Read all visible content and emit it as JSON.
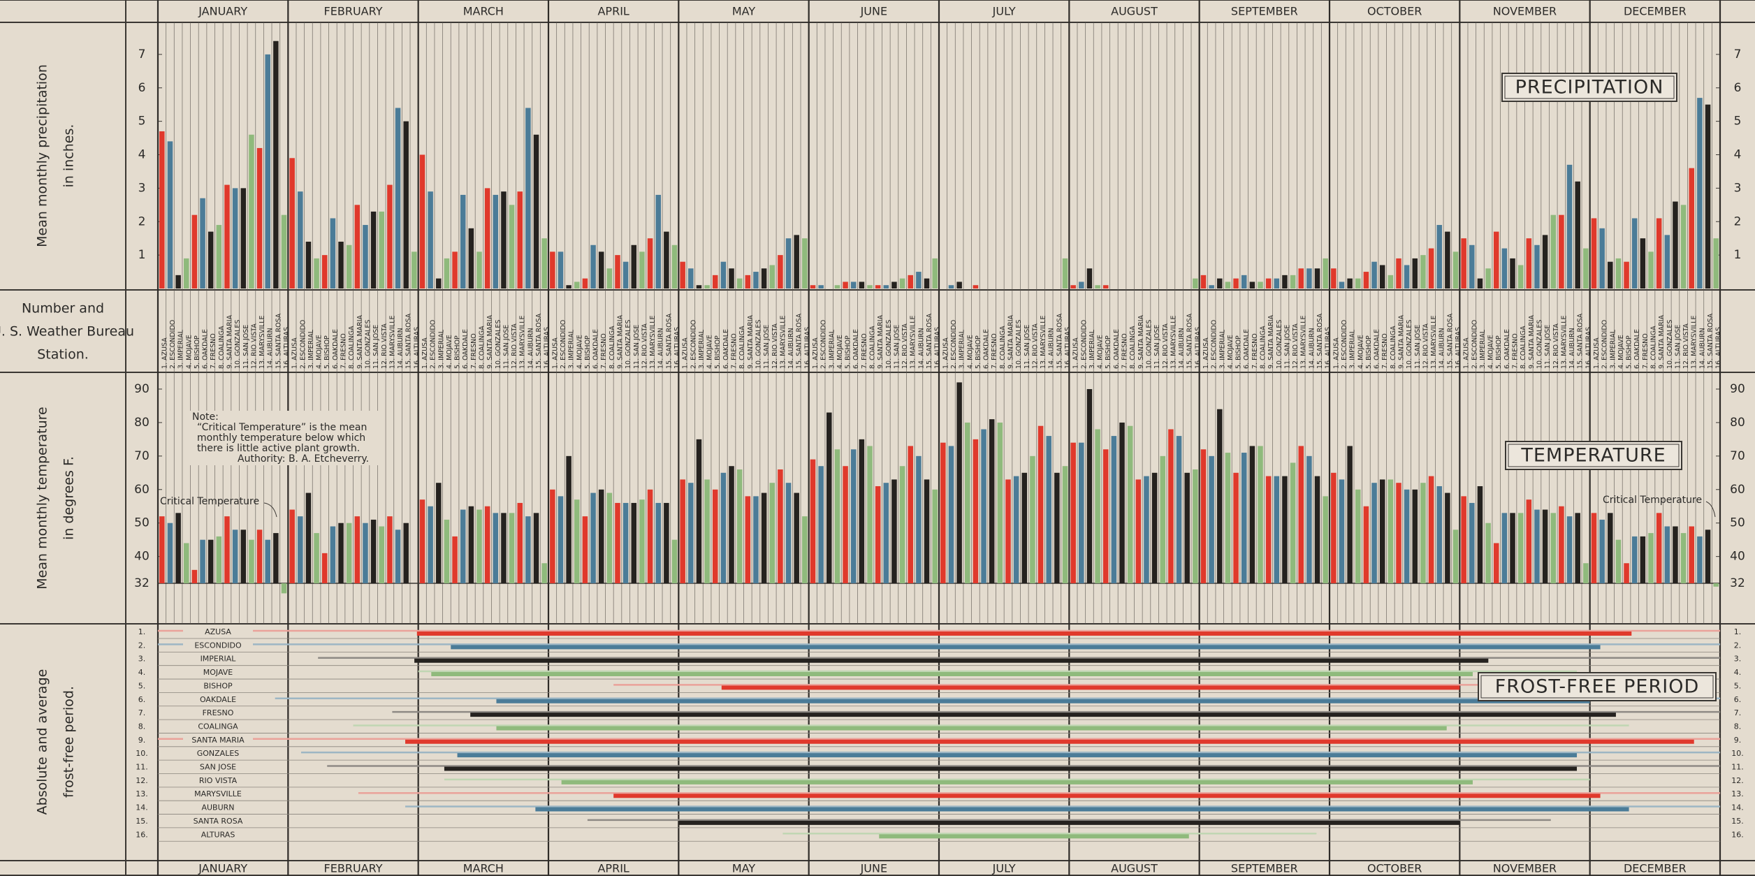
{
  "chart_data": [
    {
      "type": "bar",
      "title": "PRECIPITATION",
      "y_label": [
        "Mean monthly precipitation",
        "in inches."
      ],
      "station_label": [
        "Number and",
        "U. S. Weather Bureau",
        "Station."
      ],
      "categories": [
        "JANUARY",
        "FEBRUARY",
        "MARCH",
        "APRIL",
        "MAY",
        "JUNE",
        "JULY",
        "AUGUST",
        "SEPTEMBER",
        "OCTOBER",
        "NOVEMBER",
        "DECEMBER"
      ],
      "station_numbers": [
        "1.",
        "2.",
        "3.",
        "4.",
        "5.",
        "6.",
        "7.",
        "8.",
        "9.",
        "10.",
        "11.",
        "12.",
        "13.",
        "14.",
        "15.",
        "16."
      ],
      "ylim": [
        0,
        8
      ],
      "yticks": [
        1,
        2,
        3,
        4,
        5,
        6,
        7
      ],
      "series": [
        {
          "name": "AZUSA",
          "color": "#e0392c",
          "values": [
            4.7,
            3.9,
            4.0,
            1.1,
            0.8,
            0.1,
            0,
            0.1,
            0.4,
            0.6,
            1.5,
            2.1
          ]
        },
        {
          "name": "ESCONDIDO",
          "color": "#4b7c98",
          "values": [
            4.4,
            2.9,
            2.9,
            1.1,
            0.6,
            0.1,
            0.1,
            0.2,
            0.1,
            0.2,
            1.3,
            1.8
          ]
        },
        {
          "name": "IMPERIAL",
          "color": "#25221f",
          "values": [
            0.4,
            1.4,
            0.3,
            0.1,
            0.1,
            0,
            0.2,
            0.6,
            0.3,
            0.3,
            0.3,
            0.8
          ]
        },
        {
          "name": "MOJAVE",
          "color": "#8fba7c",
          "values": [
            0.9,
            0.9,
            0.9,
            0.2,
            0.1,
            0.1,
            0,
            0.1,
            0.2,
            0.3,
            0.6,
            0.9
          ]
        },
        {
          "name": "BISHOP",
          "color": "#e0392c",
          "values": [
            2.2,
            1.0,
            1.1,
            0.3,
            0.4,
            0.2,
            0.1,
            0.1,
            0.3,
            0.5,
            1.7,
            0.8
          ]
        },
        {
          "name": "OAKDALE",
          "color": "#4b7c98",
          "values": [
            2.7,
            2.1,
            2.8,
            1.3,
            0.8,
            0.2,
            0,
            0,
            0.4,
            0.8,
            1.2,
            2.1
          ]
        },
        {
          "name": "FRESNO",
          "color": "#25221f",
          "values": [
            1.7,
            1.4,
            1.8,
            1.1,
            0.6,
            0.2,
            0,
            0,
            0.2,
            0.7,
            0.9,
            1.5
          ]
        },
        {
          "name": "COALINGA",
          "color": "#8fba7c",
          "values": [
            1.9,
            1.3,
            1.1,
            0.6,
            0.3,
            0.1,
            0,
            0,
            0.2,
            0.4,
            0.7,
            1.1
          ]
        },
        {
          "name": "SANTA MARIA",
          "color": "#e0392c",
          "values": [
            3.1,
            2.5,
            3.0,
            1.0,
            0.4,
            0.1,
            0,
            0,
            0.3,
            0.9,
            1.5,
            2.1
          ]
        },
        {
          "name": "GONZALES",
          "color": "#4b7c98",
          "values": [
            3.0,
            1.9,
            2.8,
            0.8,
            0.5,
            0.1,
            0,
            0,
            0.3,
            0.7,
            1.3,
            1.6
          ]
        },
        {
          "name": "SAN JOSE",
          "color": "#25221f",
          "values": [
            3.0,
            2.3,
            2.9,
            1.3,
            0.6,
            0.2,
            0,
            0,
            0.4,
            0.9,
            1.6,
            2.6
          ]
        },
        {
          "name": "RIO VISTA",
          "color": "#8fba7c",
          "values": [
            4.6,
            2.3,
            2.5,
            1.1,
            0.7,
            0.3,
            0,
            0,
            0.4,
            1.0,
            2.2,
            2.5
          ]
        },
        {
          "name": "MARYSVILLE",
          "color": "#e0392c",
          "values": [
            4.2,
            3.1,
            2.9,
            1.5,
            1.0,
            0.4,
            0,
            0,
            0.6,
            1.2,
            2.2,
            3.6
          ]
        },
        {
          "name": "AUBURN",
          "color": "#4b7c98",
          "values": [
            7.0,
            5.4,
            5.4,
            2.8,
            1.5,
            0.5,
            0,
            0,
            0.6,
            1.9,
            3.7,
            5.7
          ]
        },
        {
          "name": "SANTA ROSA",
          "color": "#25221f",
          "values": [
            7.4,
            5.0,
            4.6,
            1.7,
            1.6,
            0.3,
            0,
            0,
            0.6,
            1.7,
            3.2,
            5.5
          ]
        },
        {
          "name": "ALTURAS",
          "color": "#8fba7c",
          "values": [
            2.2,
            1.1,
            1.5,
            1.3,
            1.5,
            0.9,
            0.9,
            0.3,
            0.9,
            1.1,
            1.2,
            1.5
          ]
        }
      ]
    },
    {
      "type": "bar",
      "title": "TEMPERATURE",
      "y_label": [
        "Mean monthly temperature",
        "in degrees F."
      ],
      "annotations": [
        "Critical Temperature",
        "Critical Temperature"
      ],
      "note": [
        "Note:",
        "“Critical Temperature” is the mean",
        "monthly temperature below which",
        "there is little active plant growth.",
        "Authority:   B. A. Etcheverry."
      ],
      "ylim": [
        32,
        95
      ],
      "yticks": [
        32,
        40,
        50,
        60,
        70,
        80,
        90
      ],
      "series": [
        {
          "color": "#e0392c",
          "values": [
            52,
            54,
            57,
            60,
            63,
            69,
            74,
            74,
            72,
            65,
            58,
            53
          ]
        },
        {
          "color": "#4b7c98",
          "values": [
            50,
            52,
            55,
            58,
            62,
            67,
            73,
            74,
            70,
            63,
            56,
            51
          ]
        },
        {
          "color": "#25221f",
          "values": [
            53,
            59,
            62,
            70,
            75,
            83,
            92,
            90,
            84,
            73,
            61,
            53
          ]
        },
        {
          "color": "#8fba7c",
          "values": [
            44,
            47,
            51,
            57,
            63,
            72,
            80,
            78,
            71,
            60,
            50,
            45
          ]
        },
        {
          "color": "#e0392c",
          "values": [
            36,
            41,
            46,
            52,
            60,
            67,
            75,
            72,
            65,
            55,
            44,
            38
          ]
        },
        {
          "color": "#4b7c98",
          "values": [
            45,
            49,
            54,
            59,
            65,
            72,
            78,
            76,
            71,
            62,
            53,
            46
          ]
        },
        {
          "color": "#25221f",
          "values": [
            45,
            50,
            55,
            60,
            67,
            75,
            81,
            80,
            73,
            63,
            53,
            46
          ]
        },
        {
          "color": "#8fba7c",
          "values": [
            46,
            50,
            54,
            59,
            66,
            73,
            80,
            79,
            73,
            63,
            53,
            47
          ]
        },
        {
          "color": "#e0392c",
          "values": [
            52,
            52,
            55,
            56,
            58,
            61,
            63,
            63,
            64,
            62,
            57,
            53
          ]
        },
        {
          "color": "#4b7c98",
          "values": [
            48,
            50,
            53,
            56,
            58,
            62,
            64,
            64,
            64,
            60,
            54,
            49
          ]
        },
        {
          "color": "#25221f",
          "values": [
            48,
            51,
            53,
            56,
            59,
            63,
            65,
            65,
            64,
            60,
            54,
            49
          ]
        },
        {
          "color": "#8fba7c",
          "values": [
            45,
            49,
            53,
            57,
            62,
            67,
            70,
            70,
            68,
            62,
            53,
            47
          ]
        },
        {
          "color": "#e0392c",
          "values": [
            48,
            52,
            56,
            60,
            66,
            73,
            79,
            78,
            73,
            64,
            55,
            49
          ]
        },
        {
          "color": "#4b7c98",
          "values": [
            45,
            48,
            52,
            56,
            62,
            70,
            76,
            76,
            70,
            61,
            52,
            46
          ]
        },
        {
          "color": "#25221f",
          "values": [
            47,
            50,
            53,
            56,
            59,
            63,
            65,
            65,
            64,
            59,
            53,
            48
          ]
        },
        {
          "color": "#8fba7c",
          "values": [
            29,
            32,
            38,
            45,
            52,
            60,
            67,
            66,
            58,
            48,
            38,
            31
          ]
        }
      ]
    },
    {
      "type": "range",
      "title": "FROST-FREE PERIOD",
      "y_label": [
        "Absolute and average",
        "frost-free period."
      ],
      "categories": [
        "JANUARY",
        "FEBRUARY",
        "MARCH",
        "APRIL",
        "MAY",
        "JUNE",
        "JULY",
        "AUGUST",
        "SEPTEMBER",
        "OCTOBER",
        "NOVEMBER",
        "DECEMBER"
      ],
      "row_numbers": [
        "1.",
        "2.",
        "3.",
        "4.",
        "5.",
        "6.",
        "7.",
        "8.",
        "9.",
        "10.",
        "11.",
        "12.",
        "13.",
        "14.",
        "15.",
        "16."
      ],
      "xlim": [
        0,
        12
      ],
      "series": [
        {
          "name": "AZUSA",
          "color": "#e0392c",
          "absolute_color": "#eaa29a",
          "absolute": [
            0,
            12
          ],
          "average": [
            1.99,
            11.32
          ]
        },
        {
          "name": "ESCONDIDO",
          "color": "#4b7c98",
          "absolute_color": "#9db6c4",
          "absolute": [
            0,
            12
          ],
          "average": [
            2.25,
            11.08
          ]
        },
        {
          "name": "IMPERIAL",
          "color": "#25221f",
          "absolute_color": "#8e8a85",
          "absolute": [
            1.23,
            12
          ],
          "average": [
            1.97,
            10.22
          ]
        },
        {
          "name": "MOJAVE",
          "color": "#8fba7c",
          "absolute_color": "#c0d6b3",
          "absolute": [
            2.0,
            10.9
          ],
          "average": [
            2.1,
            10.1
          ]
        },
        {
          "name": "BISHOP",
          "color": "#e0392c",
          "absolute_color": "#eaa29a",
          "absolute": [
            3.5,
            10.8
          ],
          "average": [
            4.33,
            10.0
          ]
        },
        {
          "name": "OAKDALE",
          "color": "#4b7c98",
          "absolute_color": "#9db6c4",
          "absolute": [
            0.9,
            12
          ],
          "average": [
            2.6,
            11.0
          ]
        },
        {
          "name": "FRESNO",
          "color": "#25221f",
          "absolute_color": "#8e8a85",
          "absolute": [
            1.8,
            12
          ],
          "average": [
            2.4,
            11.2
          ]
        },
        {
          "name": "COALINGA",
          "color": "#8fba7c",
          "absolute_color": "#c0d6b3",
          "absolute": [
            1.5,
            11.3
          ],
          "average": [
            2.6,
            9.9
          ]
        },
        {
          "name": "SANTA MARIA",
          "color": "#e0392c",
          "absolute_color": "#eaa29a",
          "absolute": [
            0,
            12
          ],
          "average": [
            1.9,
            11.8
          ]
        },
        {
          "name": "GONZALES",
          "color": "#4b7c98",
          "absolute_color": "#9db6c4",
          "absolute": [
            1.1,
            12
          ],
          "average": [
            2.3,
            10.9
          ]
        },
        {
          "name": "SAN JOSE",
          "color": "#25221f",
          "absolute_color": "#8e8a85",
          "absolute": [
            1.3,
            12
          ],
          "average": [
            2.2,
            10.9
          ]
        },
        {
          "name": "RIO VISTA",
          "color": "#8fba7c",
          "absolute_color": "#c0d6b3",
          "absolute": [
            2.2,
            11.0
          ],
          "average": [
            3.1,
            10.1
          ]
        },
        {
          "name": "MARYSVILLE",
          "color": "#e0392c",
          "absolute_color": "#eaa29a",
          "absolute": [
            1.54,
            12
          ],
          "average": [
            3.5,
            11.08
          ]
        },
        {
          "name": "AUBURN",
          "color": "#4b7c98",
          "absolute_color": "#9db6c4",
          "absolute": [
            1.9,
            12
          ],
          "average": [
            2.9,
            11.3
          ]
        },
        {
          "name": "SANTA ROSA",
          "color": "#25221f",
          "absolute_color": "#8e8a85",
          "absolute": [
            3.3,
            10.7
          ],
          "average": [
            4.0,
            10.0
          ]
        },
        {
          "name": "ALTURAS",
          "color": "#8fba7c",
          "absolute_color": "#c0d6b3",
          "absolute": [
            4.8,
            8.9
          ],
          "average": [
            5.54,
            7.92
          ]
        }
      ]
    }
  ]
}
